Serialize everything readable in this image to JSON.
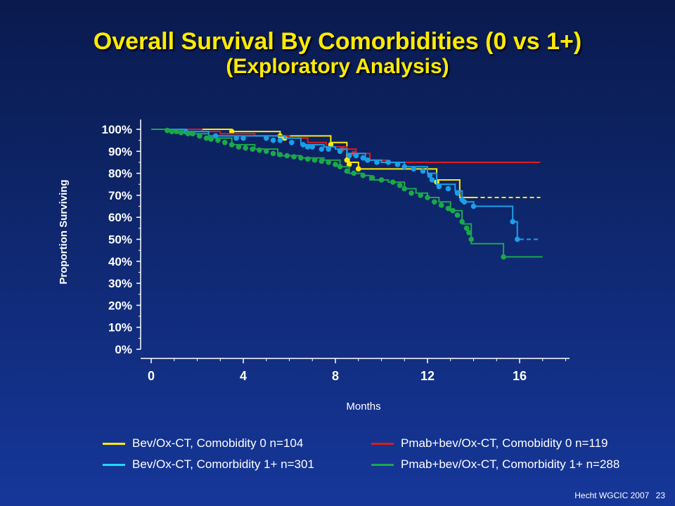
{
  "title": "Overall Survival By Comorbidities (0 vs 1+)",
  "subtitle": "(Exploratory Analysis)",
  "footer": {
    "source": "Hecht WGCIC 2007",
    "page": "23"
  },
  "chart_data": {
    "type": "line",
    "xlabel": "Months",
    "ylabel": "Proportion Surviving",
    "xlim": [
      0,
      18
    ],
    "ylim": [
      0,
      100
    ],
    "x_ticks": [
      "0",
      "4",
      "8",
      "12",
      "16"
    ],
    "x_tick_values": [
      0,
      4,
      8,
      12,
      16
    ],
    "y_ticks": [
      "0%",
      "10%",
      "20%",
      "30%",
      "40%",
      "50%",
      "60%",
      "70%",
      "80%",
      "90%",
      "100%"
    ],
    "y_tick_values": [
      0,
      10,
      20,
      30,
      40,
      50,
      60,
      70,
      80,
      90,
      100
    ],
    "legend_placement": "bottom",
    "series": [
      {
        "name": "Bev/Ox-CT, Comobidity 0 n=104",
        "color": "#ffeb00",
        "steps": [
          [
            0,
            100
          ],
          [
            3.5,
            99
          ],
          [
            5.6,
            97
          ],
          [
            7.8,
            94
          ],
          [
            8.5,
            87
          ],
          [
            8.6,
            85
          ],
          [
            9.0,
            82
          ],
          [
            12.4,
            77
          ],
          [
            13.4,
            69
          ],
          [
            14.0,
            69
          ]
        ],
        "dashed_from": 13.4,
        "end_x": 16.9,
        "censor": [
          [
            3.5,
            99
          ],
          [
            5.6,
            97
          ],
          [
            5.8,
            96
          ],
          [
            7.8,
            93
          ],
          [
            8.5,
            86
          ],
          [
            8.6,
            84
          ],
          [
            9.0,
            82
          ],
          [
            12.4,
            76
          ]
        ]
      },
      {
        "name": "Pmab+bev/Ox-CT, Comobidity 0 n=119",
        "color": "#dc1c1c",
        "steps": [
          [
            0,
            100
          ],
          [
            2.2,
            99
          ],
          [
            3.0,
            98
          ],
          [
            4.5,
            97
          ],
          [
            6.0,
            96
          ],
          [
            6.8,
            94
          ],
          [
            7.6,
            92
          ],
          [
            8.5,
            91
          ],
          [
            8.9,
            89
          ],
          [
            9.5,
            86
          ],
          [
            10.2,
            85
          ]
        ],
        "dashed_from": null,
        "end_x": 16.9,
        "censor": [
          [
            8.3,
            91
          ],
          [
            8.8,
            89
          ]
        ]
      },
      {
        "name": "Bev/Ox-CT, Comorbidity 1+ n=301",
        "color": "#1a9fe8",
        "steps": [
          [
            0,
            100
          ],
          [
            1.5,
            99
          ],
          [
            2.5,
            97
          ],
          [
            5.8,
            96
          ],
          [
            6.5,
            93
          ],
          [
            7.5,
            92
          ],
          [
            8.0,
            91
          ],
          [
            8.5,
            89
          ],
          [
            9.3,
            86
          ],
          [
            10.0,
            85
          ],
          [
            11.0,
            83
          ],
          [
            12.0,
            80
          ],
          [
            12.4,
            75
          ],
          [
            13.2,
            72
          ],
          [
            13.5,
            67
          ],
          [
            14.0,
            65
          ],
          [
            15.7,
            58
          ],
          [
            15.9,
            50
          ],
          [
            16.0,
            50
          ]
        ],
        "dashed_from": 14.3,
        "end_x": 16.0,
        "end_x_dashed": 16.9,
        "censor": [
          [
            1.5,
            99
          ],
          [
            2.8,
            97
          ],
          [
            3.7,
            96
          ],
          [
            4.0,
            96
          ],
          [
            5.0,
            96
          ],
          [
            5.3,
            95
          ],
          [
            5.6,
            95
          ],
          [
            6.1,
            94
          ],
          [
            6.6,
            93
          ],
          [
            6.8,
            92
          ],
          [
            7.0,
            92
          ],
          [
            7.4,
            91
          ],
          [
            7.7,
            91
          ],
          [
            8.2,
            90
          ],
          [
            8.6,
            88
          ],
          [
            8.9,
            88
          ],
          [
            9.2,
            87
          ],
          [
            9.4,
            86
          ],
          [
            9.8,
            85
          ],
          [
            10.3,
            85
          ],
          [
            10.7,
            84
          ],
          [
            11.0,
            83
          ],
          [
            11.4,
            82
          ],
          [
            11.8,
            81
          ],
          [
            12.1,
            79
          ],
          [
            12.2,
            77
          ],
          [
            12.5,
            74
          ],
          [
            12.9,
            73
          ],
          [
            13.3,
            71
          ],
          [
            13.5,
            68
          ],
          [
            13.6,
            67
          ],
          [
            14.0,
            65
          ],
          [
            15.7,
            58
          ],
          [
            15.9,
            50
          ]
        ]
      },
      {
        "name": "Pmab+bev/Ox-CT, Comorbidity 1+ n=288",
        "color": "#1aa84a",
        "steps": [
          [
            0,
            100
          ],
          [
            0.8,
            99
          ],
          [
            1.5,
            98
          ],
          [
            2.5,
            96
          ],
          [
            3.5,
            93
          ],
          [
            4.5,
            91
          ],
          [
            5.5,
            88
          ],
          [
            6.5,
            87
          ],
          [
            7.5,
            86
          ],
          [
            8.2,
            83
          ],
          [
            8.6,
            80
          ],
          [
            9.2,
            79
          ],
          [
            9.5,
            77
          ],
          [
            10.3,
            76
          ],
          [
            11.0,
            73
          ],
          [
            11.5,
            71
          ],
          [
            12.0,
            69
          ],
          [
            12.5,
            67
          ],
          [
            13.0,
            63
          ],
          [
            13.5,
            57
          ],
          [
            13.9,
            48
          ],
          [
            15.3,
            42
          ],
          [
            15.4,
            42
          ]
        ],
        "dashed_from": null,
        "end_x": 17.0,
        "censor": [
          [
            0.7,
            99.5
          ],
          [
            0.9,
            99
          ],
          [
            1.1,
            99
          ],
          [
            1.3,
            98.5
          ],
          [
            1.6,
            98
          ],
          [
            1.8,
            98
          ],
          [
            2.1,
            97
          ],
          [
            2.4,
            96
          ],
          [
            2.6,
            95.5
          ],
          [
            2.9,
            95
          ],
          [
            3.2,
            94
          ],
          [
            3.5,
            93
          ],
          [
            3.8,
            92
          ],
          [
            4.1,
            91.5
          ],
          [
            4.4,
            91
          ],
          [
            4.7,
            90.5
          ],
          [
            5.0,
            90
          ],
          [
            5.3,
            89
          ],
          [
            5.6,
            88.5
          ],
          [
            5.9,
            88
          ],
          [
            6.2,
            87.5
          ],
          [
            6.5,
            87
          ],
          [
            6.8,
            86.5
          ],
          [
            7.1,
            86
          ],
          [
            7.4,
            85.5
          ],
          [
            7.7,
            85
          ],
          [
            8.0,
            84
          ],
          [
            8.2,
            83
          ],
          [
            8.5,
            81
          ],
          [
            8.8,
            80
          ],
          [
            9.2,
            79
          ],
          [
            9.6,
            78
          ],
          [
            10.0,
            77
          ],
          [
            10.5,
            76
          ],
          [
            10.8,
            74.5
          ],
          [
            11.0,
            73
          ],
          [
            11.3,
            71
          ],
          [
            11.7,
            70
          ],
          [
            12.0,
            69
          ],
          [
            12.3,
            67
          ],
          [
            12.6,
            65.5
          ],
          [
            12.9,
            64
          ],
          [
            13.1,
            63
          ],
          [
            13.3,
            61
          ],
          [
            13.5,
            58
          ],
          [
            13.7,
            55
          ],
          [
            13.8,
            53
          ],
          [
            13.9,
            50
          ],
          [
            15.3,
            42
          ]
        ]
      }
    ]
  }
}
